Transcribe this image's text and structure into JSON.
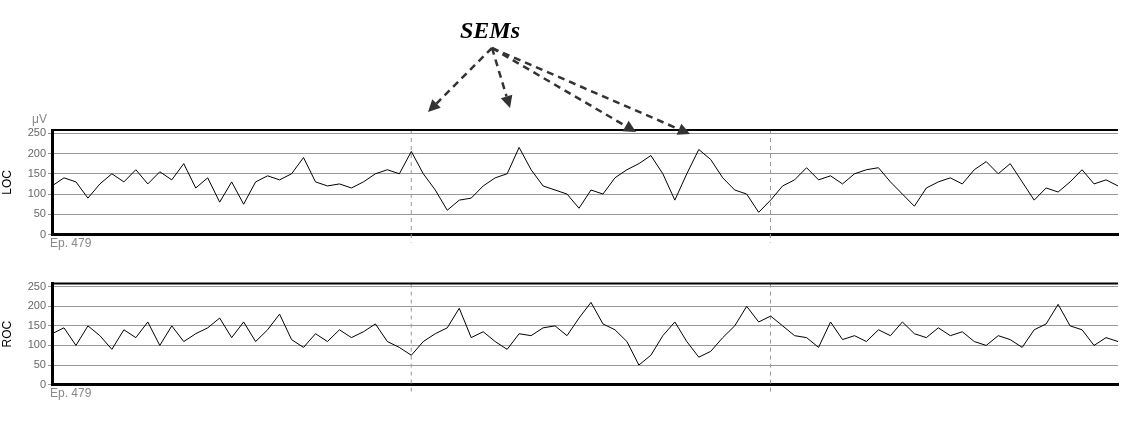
{
  "chart_data": [
    {
      "type": "line",
      "title": "SEMs",
      "ylabel": "LOC",
      "annotations": [
        "μV",
        "Ep. 479"
      ],
      "ylim": [
        0,
        258
      ],
      "yticks": [
        0,
        50,
        100,
        150,
        200,
        250
      ],
      "grid": "y",
      "marker": "none",
      "legend": false,
      "categories": [
        null,
        null,
        null,
        null,
        null,
        null,
        null,
        null,
        null,
        null,
        null,
        null,
        null,
        null,
        null,
        null,
        null,
        null,
        null,
        null,
        null,
        null,
        null,
        null,
        null,
        null,
        null,
        null,
        null,
        null,
        null,
        null,
        null,
        null,
        null,
        null,
        null,
        null,
        null,
        null,
        null,
        null,
        null,
        null,
        null,
        null,
        null,
        null,
        null,
        null,
        null,
        null,
        null,
        null,
        null,
        null,
        null,
        null,
        null,
        null,
        null,
        null,
        null,
        null,
        null,
        null,
        null,
        null,
        null,
        null,
        null,
        null,
        null,
        null,
        null,
        null,
        null,
        null,
        null,
        null,
        null,
        null,
        null,
        null,
        null,
        null,
        null,
        null,
        null,
        null
      ],
      "series": [
        {
          "color": "#000000",
          "values": [
            120,
            140,
            130,
            90,
            125,
            150,
            130,
            160,
            125,
            155,
            135,
            175,
            115,
            140,
            80,
            130,
            75,
            130,
            145,
            135,
            150,
            190,
            130,
            120,
            125,
            115,
            130,
            150,
            160,
            150,
            205,
            150,
            110,
            60,
            85,
            90,
            120,
            140,
            150,
            215,
            160,
            120,
            110,
            100,
            65,
            110,
            100,
            140,
            160,
            175,
            195,
            150,
            85,
            150,
            210,
            185,
            140,
            110,
            100,
            55,
            85,
            120,
            135,
            165,
            135,
            145,
            125,
            150,
            160,
            165,
            130,
            100,
            70,
            115,
            130,
            140,
            125,
            160,
            180,
            150,
            175,
            130,
            85,
            115,
            105,
            130,
            160,
            125,
            135,
            120
          ]
        }
      ]
    },
    {
      "type": "line",
      "ylabel": "ROC",
      "annotations": [
        "Ep. 479"
      ],
      "ylim": [
        0,
        258
      ],
      "yticks": [
        0,
        50,
        100,
        150,
        200,
        250
      ],
      "grid": "y",
      "marker": "none",
      "legend": false,
      "categories": [
        null,
        null,
        null,
        null,
        null,
        null,
        null,
        null,
        null,
        null,
        null,
        null,
        null,
        null,
        null,
        null,
        null,
        null,
        null,
        null,
        null,
        null,
        null,
        null,
        null,
        null,
        null,
        null,
        null,
        null,
        null,
        null,
        null,
        null,
        null,
        null,
        null,
        null,
        null,
        null,
        null,
        null,
        null,
        null,
        null,
        null,
        null,
        null,
        null,
        null,
        null,
        null,
        null,
        null,
        null,
        null,
        null,
        null,
        null,
        null,
        null,
        null,
        null,
        null,
        null,
        null,
        null,
        null,
        null,
        null,
        null,
        null,
        null,
        null,
        null,
        null,
        null,
        null,
        null,
        null,
        null,
        null,
        null,
        null,
        null,
        null,
        null,
        null,
        null,
        null
      ],
      "series": [
        {
          "color": "#000000",
          "values": [
            130,
            145,
            100,
            150,
            125,
            90,
            140,
            120,
            160,
            100,
            150,
            110,
            130,
            145,
            170,
            120,
            160,
            110,
            140,
            180,
            115,
            95,
            130,
            110,
            140,
            120,
            135,
            155,
            110,
            95,
            75,
            110,
            130,
            145,
            195,
            120,
            135,
            110,
            90,
            130,
            125,
            145,
            150,
            125,
            170,
            210,
            155,
            140,
            110,
            50,
            75,
            125,
            160,
            110,
            70,
            85,
            120,
            150,
            200,
            160,
            175,
            150,
            125,
            120,
            95,
            160,
            115,
            125,
            110,
            140,
            125,
            160,
            130,
            120,
            145,
            125,
            135,
            110,
            100,
            125,
            115,
            95,
            140,
            155,
            205,
            150,
            140,
            100,
            120,
            110
          ]
        }
      ]
    }
  ]
}
